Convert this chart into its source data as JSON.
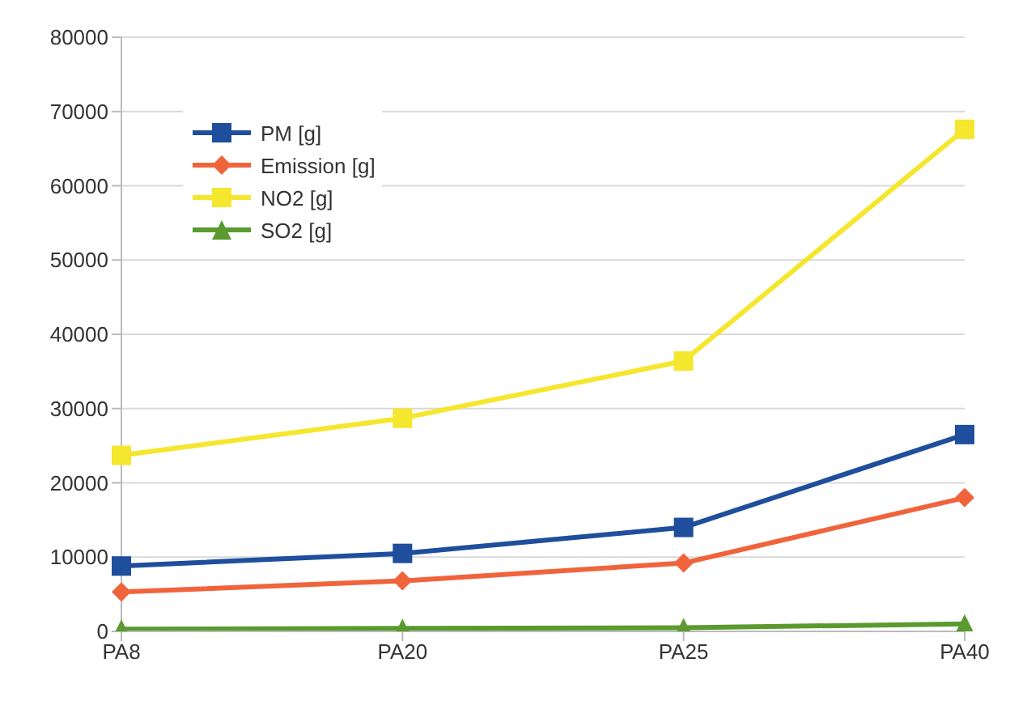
{
  "chart_data": {
    "type": "line",
    "categories": [
      "PA8",
      "PA20",
      "PA25",
      "PA40"
    ],
    "series": [
      {
        "name": "PM [g]",
        "color": "#1f4e9c",
        "marker": "square",
        "values": [
          8800,
          10500,
          14000,
          26500
        ]
      },
      {
        "name": "Emission [g]",
        "color": "#f0643c",
        "marker": "diamond",
        "values": [
          5300,
          6800,
          9200,
          18000
        ]
      },
      {
        "name": "NO2 [g]",
        "color": "#f5e62e",
        "marker": "square",
        "values": [
          23700,
          28700,
          36400,
          67600
        ]
      },
      {
        "name": "SO2 [g]",
        "color": "#5a9a2e",
        "marker": "triangle",
        "values": [
          300,
          400,
          500,
          1000
        ]
      }
    ],
    "ylim": [
      0,
      80000
    ],
    "yticks": [
      0,
      10000,
      20000,
      30000,
      40000,
      50000,
      60000,
      70000,
      80000
    ],
    "grid": "y",
    "legend": "top left"
  }
}
